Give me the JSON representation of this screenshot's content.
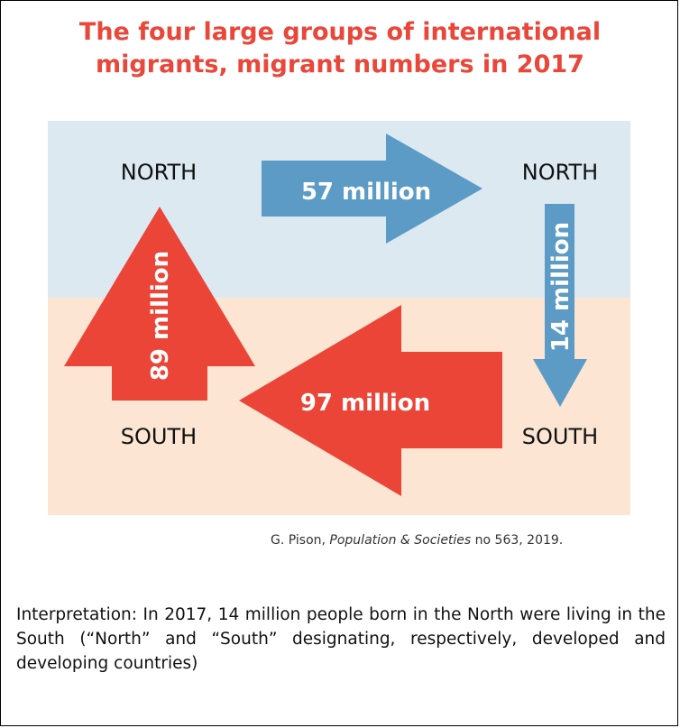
{
  "title": {
    "line1": "The four large groups of international",
    "line2": "migrants, migrant numbers in 2017"
  },
  "regions": {
    "north_left": "NORTH",
    "north_right": "NORTH",
    "south_left": "SOUTH",
    "south_right": "SOUTH"
  },
  "flows": {
    "north_to_north": "57 million",
    "north_to_south": "14 million",
    "south_to_south": "97 million",
    "south_to_north": "89 million"
  },
  "colors": {
    "north_band": "#dce9f0",
    "south_band": "#fce5d3",
    "blue_arrow": "#5b9bc5",
    "red_arrow": "#eb4538",
    "title": "#e8473a"
  },
  "source": {
    "author": "G. Pison, ",
    "publication": "Population & Societies",
    "details": " no 563, 2019."
  },
  "interpretation": "Interpretation: In 2017, 14 million people born in the North were living in the South (“North” and “South” designating, respectively, developed and developing countries)"
}
